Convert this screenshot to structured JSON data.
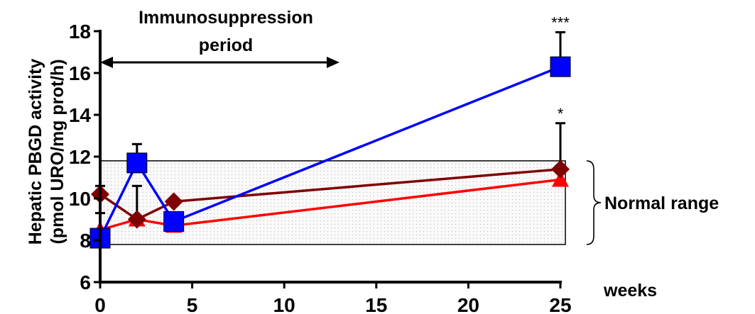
{
  "chart_data": {
    "type": "line",
    "title": "",
    "xlabel": "weeks",
    "ylabel": "Hepatic PBGD activity",
    "ylabel_units": "(pmol URO/mg prot/h)",
    "xlim": [
      0,
      25
    ],
    "ylim": [
      6,
      18
    ],
    "xticks": [
      "0",
      "5",
      "10",
      "15",
      "20",
      "25"
    ],
    "yticks": [
      "6",
      "8",
      "10",
      "12",
      "14",
      "16",
      "18"
    ],
    "grid": false,
    "legend": "none",
    "normal_range": {
      "low": 7.8,
      "high": 11.8,
      "label": "Normal range"
    },
    "immunosuppression": {
      "from": 0,
      "to": 13,
      "label_line1": "Immunosuppression",
      "label_line2": "period"
    },
    "series": [
      {
        "marker": "triangle",
        "color": "#ff0000",
        "x": [
          0,
          2,
          4,
          25
        ],
        "y": [
          8.5,
          9.0,
          8.7,
          10.9
        ]
      },
      {
        "marker": "diamond",
        "color": "#800000",
        "x": [
          0,
          2,
          4,
          25
        ],
        "y": [
          10.2,
          9.0,
          9.85,
          11.4
        ],
        "error_up": [
          0.4,
          1.6,
          0,
          2.2
        ],
        "error_down": [
          0.9,
          0,
          0,
          0
        ]
      },
      {
        "marker": "square",
        "color": "#0000ff",
        "x": [
          0,
          2,
          4,
          25
        ],
        "y": [
          8.1,
          11.7,
          8.9,
          16.3
        ],
        "error_up": [
          0,
          0.9,
          0,
          1.65
        ]
      }
    ],
    "significance": [
      {
        "x": 25,
        "y": 17.95,
        "text": "***"
      },
      {
        "x": 25,
        "y": 13.6,
        "text": "*"
      }
    ]
  }
}
